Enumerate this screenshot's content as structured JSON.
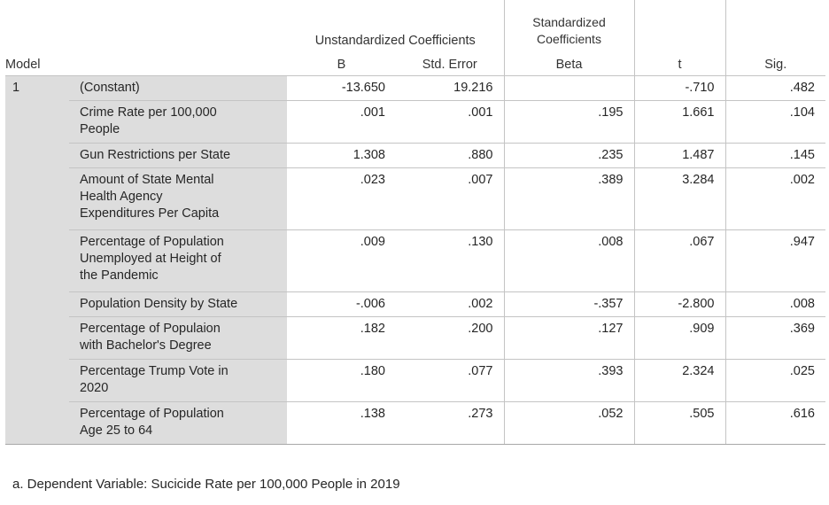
{
  "header": {
    "model": "Model",
    "unstd_group": "Unstandardized Coefficients",
    "std_group_line1": "Standardized",
    "std_group_line2": "Coefficients",
    "b": "B",
    "std_error": "Std. Error",
    "beta": "Beta",
    "t": "t",
    "sig": "Sig."
  },
  "model_number": "1",
  "rows": [
    {
      "name": [
        "(Constant)"
      ],
      "b": "-13.650",
      "se": "19.216",
      "beta": "",
      "t": "-.710",
      "sig": ".482"
    },
    {
      "name": [
        "Crime Rate per 100,000",
        "People"
      ],
      "b": ".001",
      "se": ".001",
      "beta": ".195",
      "t": "1.661",
      "sig": ".104"
    },
    {
      "name": [
        "Gun Restrictions per State"
      ],
      "b": "1.308",
      "se": ".880",
      "beta": ".235",
      "t": "1.487",
      "sig": ".145"
    },
    {
      "name": [
        "Amount of State Mental",
        "Health Agency",
        "Expenditures Per Capita"
      ],
      "b": ".023",
      "se": ".007",
      "beta": ".389",
      "t": "3.284",
      "sig": ".002"
    },
    {
      "name": [
        "Percentage of Population",
        "Unemployed at Height of",
        "the Pandemic"
      ],
      "b": ".009",
      "se": ".130",
      "beta": ".008",
      "t": ".067",
      "sig": ".947"
    },
    {
      "name": [
        "Population Density by State"
      ],
      "b": "-.006",
      "se": ".002",
      "beta": "-.357",
      "t": "-2.800",
      "sig": ".008"
    },
    {
      "name": [
        "Percentage of Populaion",
        "with Bachelor's Degree"
      ],
      "b": ".182",
      "se": ".200",
      "beta": ".127",
      "t": ".909",
      "sig": ".369"
    },
    {
      "name": [
        "Percentage Trump Vote in",
        "2020"
      ],
      "b": ".180",
      "se": ".077",
      "beta": ".393",
      "t": "2.324",
      "sig": ".025"
    },
    {
      "name": [
        "Percentage of Population",
        "Age 25 to 64"
      ],
      "b": ".138",
      "se": ".273",
      "beta": ".052",
      "t": ".505",
      "sig": ".616"
    }
  ],
  "footnote": "a. Dependent Variable: Sucicide Rate per 100,000 People in 2019"
}
